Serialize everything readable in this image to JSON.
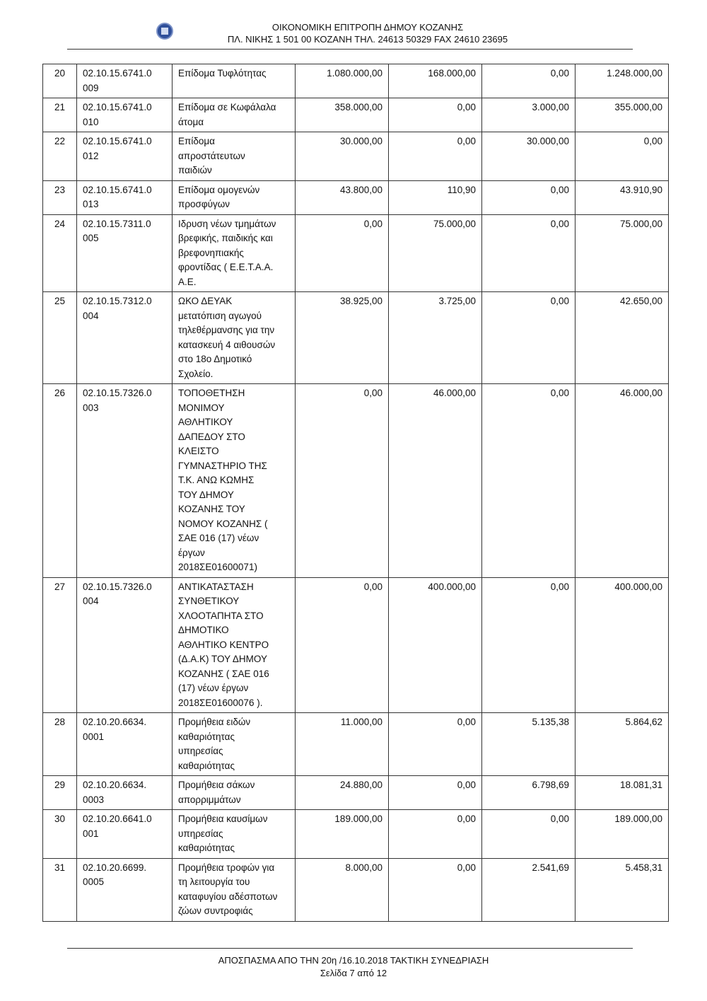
{
  "header": {
    "line1": "ΟΙΚΟΝΟΜΙΚΗ  ΕΠΙΤΡΟΠΗ  ΔΗΜΟΥ  ΚΟΖΑΝΗΣ",
    "line2": "ΠΛ. ΝΙΚΗΣ 1  501 00  ΚΟΖΑΝΗ  ΤΗΛ.  24613 50329  FAX  24610 23695"
  },
  "rows": [
    {
      "n": "20",
      "code": "02.10.15.6741.0\n009",
      "desc": "Επίδομα Τυφλότητας",
      "a": "1.080.000,00",
      "b": "168.000,00",
      "c": "0,00",
      "d": "1.248.000,00"
    },
    {
      "n": "21",
      "code": "02.10.15.6741.0\n010",
      "desc": "Επίδομα σε Κωφάλαλα\nάτομα",
      "a": "358.000,00",
      "b": "0,00",
      "c": "3.000,00",
      "d": "355.000,00"
    },
    {
      "n": "22",
      "code": "02.10.15.6741.0\n012",
      "desc": "Επίδομα\nαπροστάτευτων\nπαιδιών",
      "a": "30.000,00",
      "b": "0,00",
      "c": "30.000,00",
      "d": "0,00"
    },
    {
      "n": "23",
      "code": "02.10.15.6741.0\n013",
      "desc": "Επίδομα ομογενών\nπροσφύγων",
      "a": "43.800,00",
      "b": "110,90",
      "c": "0,00",
      "d": "43.910,90"
    },
    {
      "n": "24",
      "code": "02.10.15.7311.0\n005",
      "desc": "Ιδρυση νέων τμημάτων\nβρεφικής, παιδικής και\nβρεφονηπιακής\nφροντίδας ( Ε.Ε.Τ.Α.Α.\nΑ.Ε.",
      "a": "0,00",
      "b": "75.000,00",
      "c": "0,00",
      "d": "75.000,00"
    },
    {
      "n": "25",
      "code": "02.10.15.7312.0\n004",
      "desc": "ΩΚΟ  ΔΕΥΑΚ\nμετατόπιση αγωγού\nτηλεθέρμανσης για την\nκατασκευή 4 αιθουσών\nστο 18ο Δημοτικό\nΣχολείο.",
      "a": "38.925,00",
      "b": "3.725,00",
      "c": "0,00",
      "d": "42.650,00"
    },
    {
      "n": "26",
      "code": "02.10.15.7326.0\n003",
      "desc": "ΤΟΠΟΘΕΤΗΣΗ\nΜΟΝΙΜΟΥ\nΑΘΛΗΤΙΚΟΥ\nΔΑΠΕΔΟΥ ΣΤΟ\nΚΛΕΙΣΤΟ\nΓΥΜΝΑΣΤΗΡΙΟ ΤΗΣ\nΤ.Κ. ΑΝΩ ΚΩΜΗΣ\nΤΟΥ ΔΗΜΟΥ\nΚΟΖΑΝΗΣ ΤΟΥ\nΝΟΜΟΥ ΚΟΖΑΝΗΣ (\nΣΑΕ 016 (17) νέων\nέργων\n2018ΣΕ01600071)",
      "a": "0,00",
      "b": "46.000,00",
      "c": "0,00",
      "d": "46.000,00"
    },
    {
      "n": "27",
      "code": "02.10.15.7326.0\n004",
      "desc": "ΑΝΤΙΚΑΤΑΣΤΑΣΗ\nΣΥΝΘΕΤΙΚΟΥ\nΧΛΟΟΤΑΠΗΤΑ ΣΤΟ\nΔΗΜΟΤΙΚΟ\nΑΘΛΗΤΙΚΟ ΚΕΝΤΡΟ\n(Δ.Α.Κ) ΤΟΥ ΔΗΜΟΥ\nΚΟΖΑΝΗΣ ( ΣΑΕ 016\n(17) νέων έργων\n2018ΣΕ01600076 ).",
      "a": "0,00",
      "b": "400.000,00",
      "c": "0,00",
      "d": "400.000,00"
    },
    {
      "n": "28",
      "code": "02.10.20.6634.\n0001",
      "desc": "Προμήθεια ειδών\nκαθαριότητας\nυπηρεσίας\nκαθαριότητας",
      "a": "11.000,00",
      "b": "0,00",
      "c": "5.135,38",
      "d": "5.864,62"
    },
    {
      "n": "29",
      "code": "02.10.20.6634.\n0003",
      "desc": "Προμήθεια σάκων\nαπορριμμάτων",
      "a": "24.880,00",
      "b": "0,00",
      "c": "6.798,69",
      "d": "18.081,31"
    },
    {
      "n": "30",
      "code": "02.10.20.6641.0\n001",
      "desc": "Προμήθεια καυσίμων\nυπηρεσίας\nκαθαριότητας",
      "a": "189.000,00",
      "b": "0,00",
      "c": "0,00",
      "d": "189.000,00"
    },
    {
      "n": "31",
      "code": "02.10.20.6699.\n0005",
      "desc": "Προμήθεια τροφών για\nτη λειτουργία του\nκαταφυγίου αδέσποτων\nζώων συντροφιάς",
      "a": "8.000,00",
      "b": "0,00",
      "c": "2.541,69",
      "d": "5.458,31"
    }
  ],
  "footer": {
    "line1": "ΑΠΟΣΠΑΣΜΑ ΑΠΟ ΤΗΝ 20η /16.10.2018  ΤΑΚΤΙΚΗ  ΣΥΝΕΔΡΙΑΣΗ",
    "line2": "Σελίδα 7 από 12"
  }
}
